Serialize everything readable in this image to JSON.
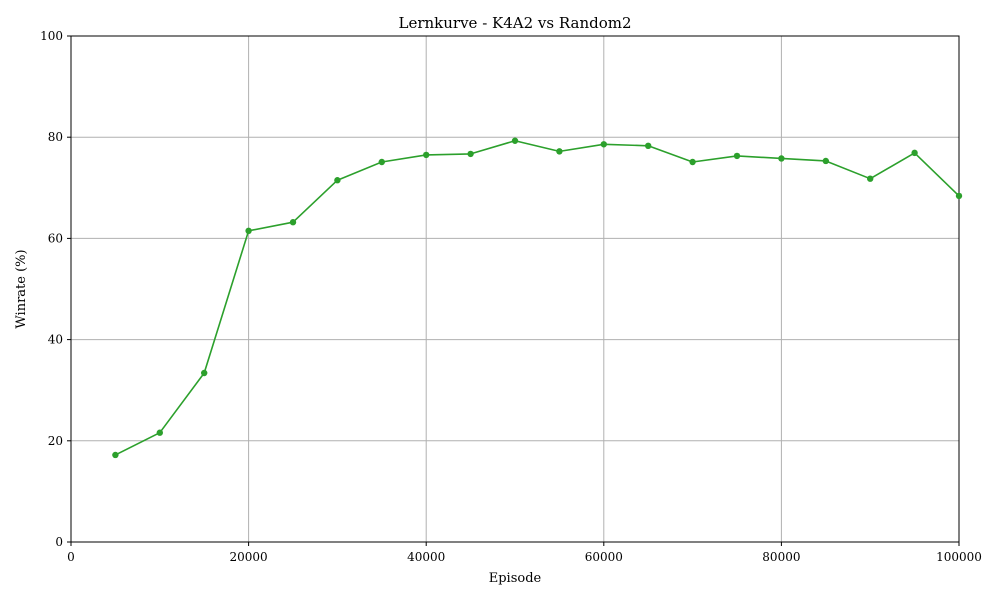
{
  "chart_data": {
    "type": "line",
    "title": "Lernkurve - K4A2 vs Random2",
    "xlabel": "Episode",
    "ylabel": "Winrate (%)",
    "xlim": [
      0,
      100000
    ],
    "ylim": [
      0,
      100
    ],
    "xticks": [
      0,
      20000,
      40000,
      60000,
      80000,
      100000
    ],
    "yticks": [
      0,
      20,
      40,
      60,
      80,
      100
    ],
    "grid": true,
    "series": [
      {
        "color": "#2ca02c",
        "marker": "circle",
        "x": [
          5000,
          10000,
          15000,
          20000,
          25000,
          30000,
          35000,
          40000,
          45000,
          50000,
          55000,
          60000,
          65000,
          70000,
          75000,
          80000,
          85000,
          90000,
          95000,
          100000
        ],
        "y": [
          17.2,
          21.6,
          33.4,
          61.5,
          63.2,
          71.5,
          75.1,
          76.5,
          76.7,
          79.3,
          77.2,
          78.6,
          78.3,
          75.1,
          76.3,
          75.8,
          75.3,
          71.8,
          76.9,
          68.4
        ]
      }
    ]
  }
}
